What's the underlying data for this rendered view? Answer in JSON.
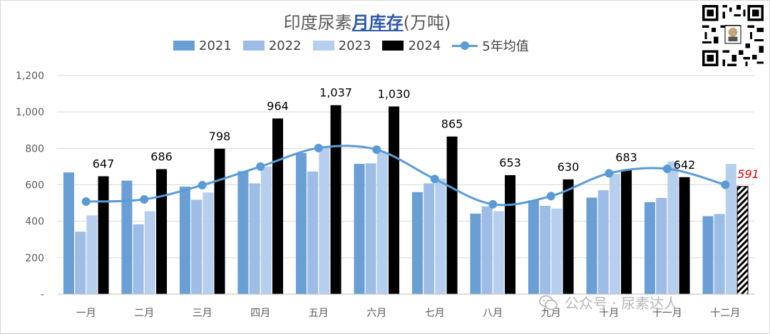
{
  "title": {
    "prefix": "印度尿素",
    "highlight": "月库存",
    "suffix": "(万吨)"
  },
  "watermark": {
    "text": "公众号 · 尿素达人",
    "icon": "wechat-icon"
  },
  "qr_code": {
    "icon": "qr-code-icon"
  },
  "colors": {
    "s2021": "#6a9fd6",
    "s2022": "#9dbde6",
    "s2023": "#b7cfee",
    "s2024": "#000000",
    "avg": "#5b9bd5",
    "label_red": "#e00000",
    "grid": "#d9d9d9",
    "axis_text": "#595959"
  },
  "chart_data": {
    "type": "bar",
    "title": "印度尿素月库存(万吨)",
    "categories": [
      "一月",
      "二月",
      "三月",
      "四月",
      "五月",
      "六月",
      "七月",
      "八月",
      "九月",
      "十月",
      "十一月",
      "十二月"
    ],
    "series": [
      {
        "name": "2021",
        "values": [
          668,
          623,
          590,
          675,
          775,
          715,
          560,
          442,
          515,
          530,
          505,
          428
        ]
      },
      {
        "name": "2022",
        "values": [
          343,
          383,
          518,
          608,
          673,
          718,
          608,
          482,
          485,
          570,
          528,
          440
        ]
      },
      {
        "name": "2023",
        "values": [
          432,
          455,
          558,
          700,
          812,
          778,
          635,
          455,
          470,
          660,
          728,
          715
        ]
      },
      {
        "name": "2024",
        "values": [
          647,
          686,
          798,
          964,
          1037,
          1030,
          865,
          653,
          630,
          683,
          642,
          591
        ],
        "data_labels": [
          "647",
          "686",
          "798",
          "964",
          "1,037",
          "1,030",
          "865",
          "653",
          "630",
          "683",
          "642",
          "591"
        ]
      }
    ],
    "line_series": {
      "name": "5年均值",
      "type": "line",
      "smooth": true,
      "values": [
        508,
        520,
        598,
        700,
        802,
        793,
        632,
        493,
        538,
        663,
        688,
        600
      ]
    },
    "estimated_last_2024_bar": true,
    "y_axis": {
      "min": 0,
      "max": 1200,
      "step": 200,
      "tick_labels": [
        "-",
        "200",
        "400",
        "600",
        "800",
        "1,000",
        "1,200"
      ]
    },
    "grid": true,
    "legend": {
      "position": "top",
      "entries": [
        "2021",
        "2022",
        "2023",
        "2024",
        "5年均值"
      ]
    }
  }
}
